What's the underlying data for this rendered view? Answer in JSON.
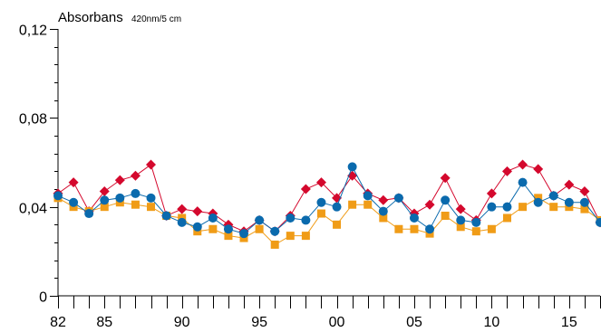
{
  "chart_data": {
    "type": "line",
    "ylabel": "Absorbans",
    "ylabel_unit": "420nm/5 cm",
    "ylim": [
      0,
      0.12
    ],
    "y_major_ticks": [
      0,
      0.04,
      0.08,
      0.12
    ],
    "y_tick_labels": [
      "0",
      "0,04",
      "0,08",
      "0,12"
    ],
    "y_minor_step": 0.008,
    "xlim": [
      1982,
      2017
    ],
    "x": [
      1982,
      1983,
      1984,
      1985,
      1986,
      1987,
      1988,
      1989,
      1990,
      1991,
      1992,
      1993,
      1994,
      1995,
      1996,
      1997,
      1998,
      1999,
      2000,
      2001,
      2002,
      2003,
      2004,
      2005,
      2006,
      2007,
      2008,
      2009,
      2010,
      2011,
      2012,
      2013,
      2014,
      2015,
      2016,
      2017
    ],
    "x_tick_labels": [
      {
        "x": 1982,
        "label": "82"
      },
      {
        "x": 1985,
        "label": "85"
      },
      {
        "x": 1990,
        "label": "90"
      },
      {
        "x": 1995,
        "label": "95"
      },
      {
        "x": 2000,
        "label": "00"
      },
      {
        "x": 2005,
        "label": "05"
      },
      {
        "x": 2010,
        "label": "10"
      },
      {
        "x": 2015,
        "label": "15"
      }
    ],
    "grid": false,
    "series": [
      {
        "color": "#d4082d",
        "marker": "diamond",
        "values": [
          0.046,
          0.051,
          0.038,
          0.047,
          0.052,
          0.054,
          0.059,
          0.036,
          0.039,
          0.038,
          0.037,
          0.032,
          0.029,
          0.034,
          0.029,
          0.036,
          0.048,
          0.051,
          0.044,
          0.054,
          0.046,
          0.043,
          0.044,
          0.037,
          0.041,
          0.053,
          0.039,
          0.034,
          0.046,
          0.056,
          0.059,
          0.057,
          0.045,
          0.05,
          0.047,
          0.033
        ]
      },
      {
        "color": "#0a6aad",
        "marker": "circle",
        "values": [
          0.045,
          0.042,
          0.037,
          0.043,
          0.044,
          0.046,
          0.044,
          0.036,
          0.033,
          0.031,
          0.035,
          0.03,
          0.028,
          0.034,
          0.029,
          0.035,
          0.034,
          0.042,
          0.04,
          0.058,
          0.045,
          0.038,
          0.044,
          0.035,
          0.03,
          0.043,
          0.034,
          0.033,
          0.04,
          0.04,
          0.051,
          0.042,
          0.045,
          0.042,
          0.042,
          0.033
        ]
      },
      {
        "color": "#f09c17",
        "marker": "square",
        "values": [
          0.044,
          0.04,
          0.038,
          0.04,
          0.042,
          0.041,
          0.04,
          0.036,
          0.035,
          0.029,
          0.03,
          0.027,
          0.026,
          0.03,
          0.023,
          0.027,
          0.027,
          0.037,
          0.032,
          0.041,
          0.041,
          0.035,
          0.03,
          0.03,
          0.028,
          0.036,
          0.031,
          0.029,
          0.03,
          0.035,
          0.04,
          0.044,
          0.04,
          0.04,
          0.039,
          0.034
        ]
      }
    ]
  }
}
